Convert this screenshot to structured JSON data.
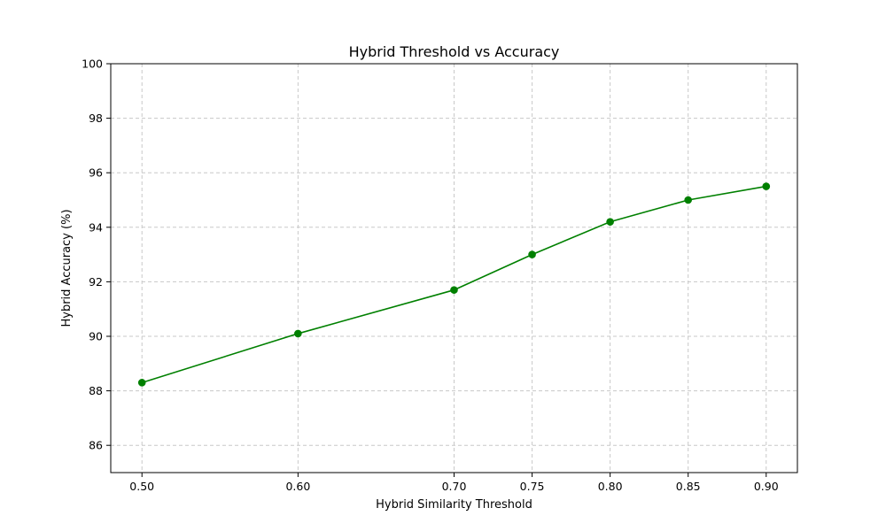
{
  "chart_data": {
    "type": "line",
    "title": "Hybrid Threshold vs Accuracy",
    "xlabel": "Hybrid Similarity Threshold",
    "ylabel": "Hybrid Accuracy (%)",
    "xlim": [
      0.48,
      0.92
    ],
    "ylim": [
      85,
      100
    ],
    "x_ticks": [
      0.5,
      0.6,
      0.7,
      0.75,
      0.8,
      0.85,
      0.9
    ],
    "x_tick_labels": [
      "0.50",
      "0.60",
      "0.70",
      "0.75",
      "0.80",
      "0.85",
      "0.90"
    ],
    "y_ticks": [
      86,
      88,
      90,
      92,
      94,
      96,
      98,
      100
    ],
    "y_tick_labels": [
      "86",
      "88",
      "90",
      "92",
      "94",
      "96",
      "98",
      "100"
    ],
    "grid": true,
    "series": [
      {
        "color": "#008000",
        "marker": "circle",
        "x": [
          0.5,
          0.6,
          0.7,
          0.75,
          0.8,
          0.85,
          0.9
        ],
        "y": [
          88.3,
          90.1,
          91.7,
          93.0,
          94.2,
          95.0,
          95.5
        ]
      }
    ]
  }
}
